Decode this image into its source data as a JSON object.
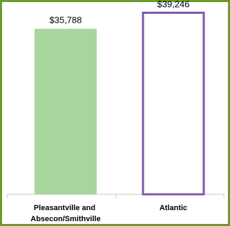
{
  "colors": {
    "frame_border": "#6a9a2a",
    "bar_1_fill": "#a8d59b",
    "bar_2_fill": "#ffffff",
    "bar_2_stroke": "#7a58a8",
    "axis": "#c8c8c8"
  },
  "chart_data": {
    "type": "bar",
    "title": "",
    "xlabel": "",
    "ylabel": "",
    "ylim": [
      0,
      42000
    ],
    "grid": false,
    "legend": "none",
    "categories": [
      [
        "Pleasantville and",
        "Absecon/Smithville"
      ],
      [
        "Atlantic"
      ]
    ],
    "values": [
      35788,
      39246
    ],
    "value_labels": [
      "$35,788",
      "$39,246"
    ]
  }
}
